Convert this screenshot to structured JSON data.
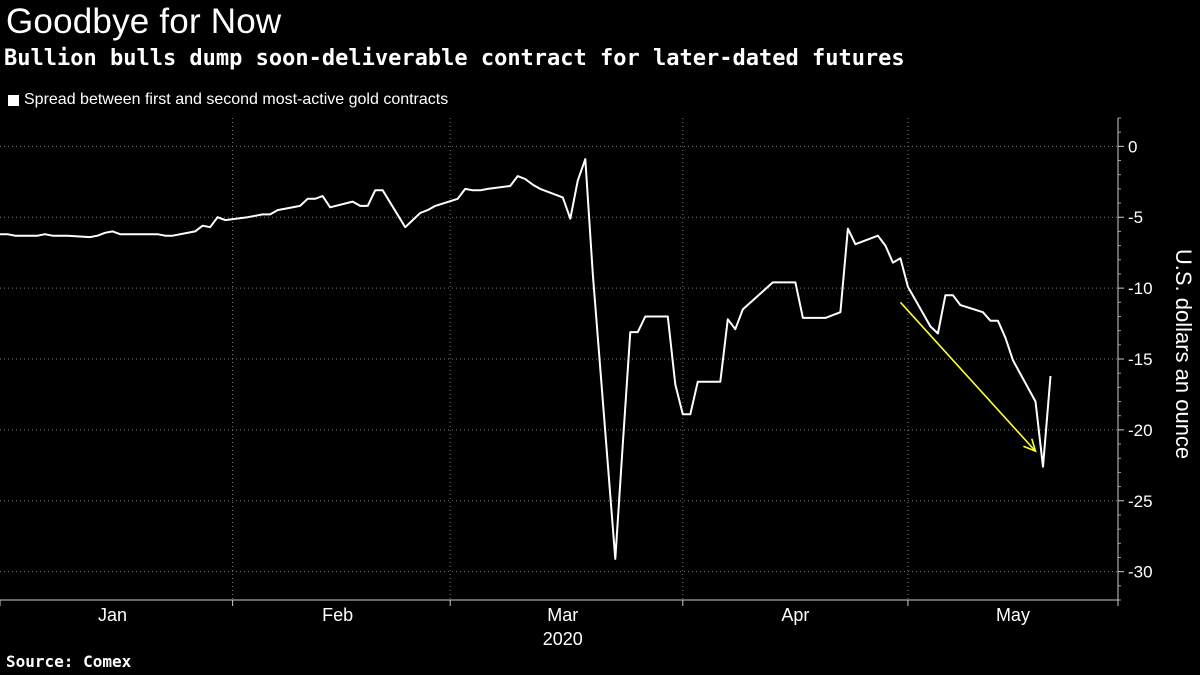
{
  "title": "Goodbye for Now",
  "subtitle": "Bullion bulls dump soon-deliverable contract for later-dated futures",
  "source": "Source: Comex",
  "colors": {
    "background": "#000000",
    "line": "#ffffff",
    "arrow": "#ffff33",
    "grid": "#777777"
  },
  "chart_data": {
    "type": "line",
    "title": "Goodbye for Now",
    "subtitle": "Bullion bulls dump soon-deliverable contract for later-dated futures",
    "ylabel": "U.S. dollars an ounce",
    "xlabel": "",
    "ylim": [
      -32,
      2
    ],
    "yticks": [
      0,
      -5,
      -10,
      -15,
      -20,
      -25,
      -30
    ],
    "ytick_labels": [
      "0",
      "-5",
      "-10",
      "-15",
      "-20",
      "-25",
      "-30"
    ],
    "y_axis_side": "right",
    "grid": true,
    "legend_placement": "top-left",
    "x_range": [
      "2020-01-01",
      "2020-05-29"
    ],
    "month_boundaries": [
      "2020-01-01",
      "2020-02-01",
      "2020-03-01",
      "2020-04-01",
      "2020-05-01",
      "2020-05-29"
    ],
    "month_labels": [
      {
        "label": "Jan",
        "date": "2020-01-16"
      },
      {
        "label": "Feb",
        "date": "2020-02-15"
      },
      {
        "label": "Mar",
        "date": "2020-03-16"
      },
      {
        "label": "Apr",
        "date": "2020-04-16"
      },
      {
        "label": "May",
        "date": "2020-05-15"
      }
    ],
    "year_label": {
      "label": "2020",
      "date": "2020-03-16"
    },
    "series": [
      {
        "name": "Spread between first and second most-active gold contracts",
        "points": [
          [
            "2020-01-01",
            -6.2
          ],
          [
            "2020-01-02",
            -6.2
          ],
          [
            "2020-01-03",
            -6.3
          ],
          [
            "2020-01-06",
            -6.3
          ],
          [
            "2020-01-07",
            -6.2
          ],
          [
            "2020-01-08",
            -6.3
          ],
          [
            "2020-01-09",
            -6.3
          ],
          [
            "2020-01-10",
            -6.3
          ],
          [
            "2020-01-13",
            -6.4
          ],
          [
            "2020-01-14",
            -6.3
          ],
          [
            "2020-01-15",
            -6.1
          ],
          [
            "2020-01-16",
            -6.0
          ],
          [
            "2020-01-17",
            -6.2
          ],
          [
            "2020-01-20",
            -6.2
          ],
          [
            "2020-01-21",
            -6.2
          ],
          [
            "2020-01-22",
            -6.2
          ],
          [
            "2020-01-23",
            -6.3
          ],
          [
            "2020-01-24",
            -6.3
          ],
          [
            "2020-01-27",
            -6.0
          ],
          [
            "2020-01-28",
            -5.6
          ],
          [
            "2020-01-29",
            -5.7
          ],
          [
            "2020-01-30",
            -5.0
          ],
          [
            "2020-01-31",
            -5.2
          ],
          [
            "2020-02-03",
            -5.0
          ],
          [
            "2020-02-04",
            -4.9
          ],
          [
            "2020-02-05",
            -4.8
          ],
          [
            "2020-02-06",
            -4.8
          ],
          [
            "2020-02-07",
            -4.5
          ],
          [
            "2020-02-10",
            -4.2
          ],
          [
            "2020-02-11",
            -3.7
          ],
          [
            "2020-02-12",
            -3.7
          ],
          [
            "2020-02-13",
            -3.5
          ],
          [
            "2020-02-14",
            -4.3
          ],
          [
            "2020-02-17",
            -3.9
          ],
          [
            "2020-02-18",
            -4.2
          ],
          [
            "2020-02-19",
            -4.2
          ],
          [
            "2020-02-20",
            -3.1
          ],
          [
            "2020-02-21",
            -3.1
          ],
          [
            "2020-02-24",
            -5.7
          ],
          [
            "2020-02-25",
            -5.2
          ],
          [
            "2020-02-26",
            -4.7
          ],
          [
            "2020-02-27",
            -4.5
          ],
          [
            "2020-02-28",
            -4.2
          ],
          [
            "2020-03-02",
            -3.7
          ],
          [
            "2020-03-03",
            -3.0
          ],
          [
            "2020-03-04",
            -3.1
          ],
          [
            "2020-03-05",
            -3.1
          ],
          [
            "2020-03-06",
            -3.0
          ],
          [
            "2020-03-09",
            -2.8
          ],
          [
            "2020-03-10",
            -2.1
          ],
          [
            "2020-03-11",
            -2.3
          ],
          [
            "2020-03-12",
            -2.7
          ],
          [
            "2020-03-13",
            -3.0
          ],
          [
            "2020-03-16",
            -3.6
          ],
          [
            "2020-03-17",
            -5.1
          ],
          [
            "2020-03-18",
            -2.4
          ],
          [
            "2020-03-19",
            -0.9
          ],
          [
            "2020-03-20",
            -9.0
          ],
          [
            "2020-03-23",
            -29.1
          ],
          [
            "2020-03-24",
            -21.0
          ],
          [
            "2020-03-25",
            -13.1
          ],
          [
            "2020-03-26",
            -13.1
          ],
          [
            "2020-03-27",
            -12.0
          ],
          [
            "2020-03-30",
            -12.0
          ],
          [
            "2020-03-31",
            -16.8
          ],
          [
            "2020-04-01",
            -18.9
          ],
          [
            "2020-04-02",
            -18.9
          ],
          [
            "2020-04-03",
            -16.6
          ],
          [
            "2020-04-06",
            -16.6
          ],
          [
            "2020-04-07",
            -12.2
          ],
          [
            "2020-04-08",
            -12.9
          ],
          [
            "2020-04-09",
            -11.5
          ],
          [
            "2020-04-13",
            -9.6
          ],
          [
            "2020-04-14",
            -9.6
          ],
          [
            "2020-04-15",
            -9.6
          ],
          [
            "2020-04-16",
            -9.6
          ],
          [
            "2020-04-17",
            -12.1
          ],
          [
            "2020-04-20",
            -12.1
          ],
          [
            "2020-04-21",
            -11.9
          ],
          [
            "2020-04-22",
            -11.7
          ],
          [
            "2020-04-23",
            -5.8
          ],
          [
            "2020-04-24",
            -6.9
          ],
          [
            "2020-04-27",
            -6.3
          ],
          [
            "2020-04-28",
            -7.0
          ],
          [
            "2020-04-29",
            -8.2
          ],
          [
            "2020-04-30",
            -7.9
          ],
          [
            "2020-05-01",
            -9.9
          ],
          [
            "2020-05-04",
            -12.7
          ],
          [
            "2020-05-05",
            -13.2
          ],
          [
            "2020-05-06",
            -10.5
          ],
          [
            "2020-05-07",
            -10.5
          ],
          [
            "2020-05-08",
            -11.2
          ],
          [
            "2020-05-11",
            -11.7
          ],
          [
            "2020-05-12",
            -12.3
          ],
          [
            "2020-05-13",
            -12.3
          ],
          [
            "2020-05-14",
            -13.5
          ],
          [
            "2020-05-15",
            -15.1
          ],
          [
            "2020-05-18",
            -18.0
          ],
          [
            "2020-05-19",
            -22.6
          ],
          [
            "2020-05-20",
            -16.2
          ]
        ]
      }
    ],
    "annotations": [
      {
        "type": "arrow",
        "from": [
          "2020-04-30",
          -11.0
        ],
        "to": [
          "2020-05-18",
          -21.5
        ],
        "color": "#ffff33"
      }
    ]
  }
}
